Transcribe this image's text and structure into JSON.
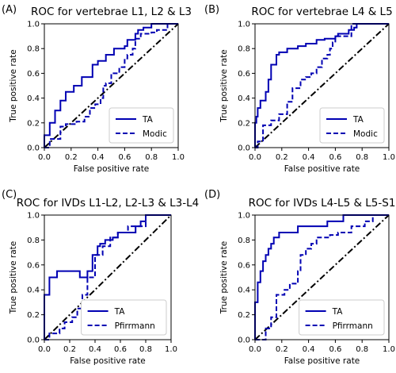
{
  "chart_data": [
    {
      "type": "line",
      "panel_label": "(A)",
      "title": "ROC for vertebrae L1, L2 & L3",
      "xlabel": "False positive rate",
      "ylabel": "True positive rate",
      "xlim": [
        0,
        1
      ],
      "ylim": [
        0,
        1
      ],
      "xticks": [
        "0.0",
        "0.2",
        "0.4",
        "0.6",
        "0.8",
        "1.0"
      ],
      "yticks": [
        "0.0",
        "0.2",
        "0.4",
        "0.6",
        "0.8",
        "1.0"
      ],
      "legend_position": "lower-right",
      "grid": false,
      "series": [
        {
          "name": "TA",
          "style": "solid",
          "color": "#0000b3",
          "x": [
            0,
            0,
            0.04,
            0.04,
            0.08,
            0.08,
            0.12,
            0.12,
            0.16,
            0.16,
            0.22,
            0.22,
            0.28,
            0.28,
            0.36,
            0.36,
            0.4,
            0.4,
            0.46,
            0.46,
            0.52,
            0.52,
            0.6,
            0.6,
            0.62,
            0.62,
            0.68,
            0.68,
            0.7,
            0.7,
            0.74,
            0.74,
            0.8,
            0.8,
            0.88,
            0.88,
            1.0
          ],
          "y": [
            0,
            0.1,
            0.1,
            0.2,
            0.2,
            0.3,
            0.3,
            0.38,
            0.38,
            0.45,
            0.45,
            0.5,
            0.5,
            0.57,
            0.57,
            0.67,
            0.67,
            0.7,
            0.7,
            0.75,
            0.75,
            0.8,
            0.8,
            0.82,
            0.82,
            0.87,
            0.87,
            0.92,
            0.92,
            0.95,
            0.95,
            0.97,
            0.97,
            1.0,
            1.0,
            1.0,
            1.0
          ]
        },
        {
          "name": "Modic",
          "style": "dashed",
          "color": "#0000b3",
          "x": [
            0,
            0.04,
            0.04,
            0.12,
            0.12,
            0.16,
            0.16,
            0.24,
            0.24,
            0.3,
            0.3,
            0.34,
            0.34,
            0.38,
            0.38,
            0.42,
            0.42,
            0.44,
            0.44,
            0.46,
            0.46,
            0.5,
            0.5,
            0.56,
            0.56,
            0.6,
            0.6,
            0.62,
            0.62,
            0.66,
            0.66,
            0.68,
            0.68,
            0.72,
            0.72,
            0.8,
            0.8,
            0.84,
            0.84,
            0.92,
            0.92,
            1.0
          ],
          "y": [
            0,
            0,
            0.07,
            0.07,
            0.17,
            0.17,
            0.19,
            0.19,
            0.21,
            0.21,
            0.25,
            0.25,
            0.32,
            0.32,
            0.35,
            0.35,
            0.4,
            0.4,
            0.5,
            0.5,
            0.52,
            0.52,
            0.6,
            0.6,
            0.65,
            0.65,
            0.72,
            0.72,
            0.75,
            0.75,
            0.8,
            0.8,
            0.88,
            0.88,
            0.92,
            0.92,
            0.93,
            0.93,
            0.95,
            0.95,
            1.0,
            1.0
          ]
        }
      ]
    },
    {
      "type": "line",
      "panel_label": "(B)",
      "title": "ROC for vertebrae L4 & L5",
      "xlabel": "False positive rate",
      "ylabel": "True positive rate",
      "xlim": [
        0,
        1
      ],
      "ylim": [
        0,
        1
      ],
      "xticks": [
        "0.0",
        "0.2",
        "0.4",
        "0.6",
        "0.8",
        "1.0"
      ],
      "yticks": [
        "0.0",
        "0.2",
        "0.4",
        "0.6",
        "0.8",
        "1.0"
      ],
      "legend_position": "lower-right",
      "grid": false,
      "series": [
        {
          "name": "TA",
          "style": "solid",
          "color": "#0000b3",
          "x": [
            0,
            0,
            0.01,
            0.01,
            0.02,
            0.02,
            0.04,
            0.04,
            0.08,
            0.08,
            0.1,
            0.1,
            0.12,
            0.12,
            0.16,
            0.16,
            0.18,
            0.18,
            0.24,
            0.24,
            0.32,
            0.32,
            0.38,
            0.38,
            0.46,
            0.46,
            0.52,
            0.52,
            0.6,
            0.6,
            0.62,
            0.62,
            0.7,
            0.7,
            0.74,
            0.74,
            0.76,
            0.76,
            1.0
          ],
          "y": [
            0,
            0.2,
            0.2,
            0.25,
            0.25,
            0.32,
            0.32,
            0.38,
            0.38,
            0.45,
            0.45,
            0.55,
            0.55,
            0.67,
            0.67,
            0.75,
            0.75,
            0.77,
            0.77,
            0.8,
            0.8,
            0.82,
            0.82,
            0.84,
            0.84,
            0.87,
            0.87,
            0.88,
            0.88,
            0.9,
            0.9,
            0.92,
            0.92,
            0.95,
            0.95,
            0.97,
            0.97,
            1.0,
            1.0
          ]
        },
        {
          "name": "Modic",
          "style": "dashed",
          "color": "#0000b3",
          "x": [
            0,
            0.02,
            0.02,
            0.06,
            0.06,
            0.12,
            0.12,
            0.18,
            0.18,
            0.24,
            0.24,
            0.28,
            0.28,
            0.34,
            0.34,
            0.38,
            0.38,
            0.42,
            0.42,
            0.46,
            0.46,
            0.5,
            0.5,
            0.54,
            0.54,
            0.56,
            0.56,
            0.58,
            0.58,
            0.6,
            0.6,
            0.72,
            0.72,
            0.8,
            0.8,
            1.0
          ],
          "y": [
            0,
            0,
            0.05,
            0.05,
            0.18,
            0.18,
            0.22,
            0.22,
            0.27,
            0.27,
            0.37,
            0.37,
            0.48,
            0.48,
            0.55,
            0.55,
            0.57,
            0.57,
            0.6,
            0.6,
            0.65,
            0.65,
            0.72,
            0.72,
            0.75,
            0.75,
            0.8,
            0.8,
            0.85,
            0.85,
            0.9,
            0.9,
            1.0,
            1.0,
            1.0,
            1.0
          ]
        }
      ]
    },
    {
      "type": "line",
      "panel_label": "(C)",
      "title": "ROC for IVDs L1-L2, L2-L3 & L3-L4",
      "xlabel": "False positive rate",
      "ylabel": "True positive rate",
      "xlim": [
        0,
        1
      ],
      "ylim": [
        0,
        1
      ],
      "xticks": [
        "0.0",
        "0.2",
        "0.4",
        "0.6",
        "0.8",
        "1.0"
      ],
      "yticks": [
        "0.0",
        "0.2",
        "0.4",
        "0.6",
        "0.8",
        "1.0"
      ],
      "legend_position": "lower-right",
      "grid": false,
      "series": [
        {
          "name": "TA",
          "style": "solid",
          "color": "#0000b3",
          "x": [
            0,
            0,
            0.04,
            0.04,
            0.1,
            0.1,
            0.18,
            0.18,
            0.28,
            0.28,
            0.34,
            0.34,
            0.38,
            0.38,
            0.42,
            0.42,
            0.44,
            0.44,
            0.48,
            0.48,
            0.54,
            0.54,
            0.58,
            0.58,
            0.66,
            0.66,
            0.72,
            0.72,
            0.76,
            0.76,
            0.8,
            0.8,
            1.0
          ],
          "y": [
            0,
            0.36,
            0.36,
            0.5,
            0.5,
            0.55,
            0.55,
            0.55,
            0.55,
            0.5,
            0.5,
            0.55,
            0.55,
            0.68,
            0.68,
            0.75,
            0.75,
            0.77,
            0.77,
            0.8,
            0.8,
            0.82,
            0.82,
            0.86,
            0.86,
            0.86,
            0.86,
            0.91,
            0.91,
            0.95,
            0.95,
            1.0,
            1.0
          ]
        },
        {
          "name": "Pfirrmann",
          "style": "dashed",
          "color": "#0000b3",
          "x": [
            0,
            0.04,
            0.04,
            0.12,
            0.12,
            0.16,
            0.16,
            0.22,
            0.22,
            0.26,
            0.26,
            0.3,
            0.3,
            0.34,
            0.34,
            0.4,
            0.4,
            0.46,
            0.46,
            0.52,
            0.52,
            0.58,
            0.58,
            0.66,
            0.66,
            0.8,
            0.8,
            1.0
          ],
          "y": [
            0,
            0,
            0.05,
            0.05,
            0.09,
            0.09,
            0.14,
            0.14,
            0.18,
            0.18,
            0.25,
            0.25,
            0.36,
            0.36,
            0.5,
            0.5,
            0.68,
            0.68,
            0.75,
            0.75,
            0.82,
            0.82,
            0.86,
            0.86,
            0.91,
            0.91,
            1.0,
            1.0
          ]
        }
      ]
    },
    {
      "type": "line",
      "panel_label": "(D)",
      "title": "ROC for IVDs L4-L5 & L5-S1",
      "xlabel": "False positive rate",
      "ylabel": "True positive rate",
      "xlim": [
        0,
        1
      ],
      "ylim": [
        0,
        1
      ],
      "xticks": [
        "0.0",
        "0.2",
        "0.4",
        "0.6",
        "0.8",
        "1.0"
      ],
      "yticks": [
        "0.0",
        "0.2",
        "0.4",
        "0.6",
        "0.8",
        "1.0"
      ],
      "legend_position": "lower-right",
      "grid": false,
      "series": [
        {
          "name": "TA",
          "style": "solid",
          "color": "#0000b3",
          "x": [
            0,
            0,
            0.02,
            0.02,
            0.04,
            0.04,
            0.06,
            0.06,
            0.08,
            0.08,
            0.1,
            0.1,
            0.12,
            0.12,
            0.14,
            0.14,
            0.18,
            0.18,
            0.24,
            0.24,
            0.32,
            0.32,
            0.42,
            0.42,
            0.54,
            0.54,
            0.62,
            0.62,
            0.66,
            0.66,
            1.0
          ],
          "y": [
            0,
            0.3,
            0.3,
            0.46,
            0.46,
            0.55,
            0.55,
            0.63,
            0.63,
            0.68,
            0.68,
            0.73,
            0.73,
            0.77,
            0.77,
            0.82,
            0.82,
            0.86,
            0.86,
            0.86,
            0.86,
            0.91,
            0.91,
            0.91,
            0.91,
            0.95,
            0.95,
            0.95,
            0.95,
            1.0,
            1.0
          ]
        },
        {
          "name": "Pfirrmann",
          "style": "dashed",
          "color": "#0000b3",
          "x": [
            0,
            0.08,
            0.08,
            0.12,
            0.12,
            0.16,
            0.16,
            0.22,
            0.22,
            0.26,
            0.26,
            0.32,
            0.32,
            0.34,
            0.34,
            0.38,
            0.38,
            0.42,
            0.42,
            0.46,
            0.46,
            0.5,
            0.5,
            0.56,
            0.56,
            0.62,
            0.62,
            0.72,
            0.72,
            0.82,
            0.82,
            0.88,
            0.88,
            1.0
          ],
          "y": [
            0,
            0,
            0.09,
            0.09,
            0.18,
            0.18,
            0.36,
            0.36,
            0.4,
            0.4,
            0.45,
            0.45,
            0.55,
            0.55,
            0.68,
            0.68,
            0.73,
            0.73,
            0.77,
            0.77,
            0.82,
            0.82,
            0.82,
            0.82,
            0.84,
            0.84,
            0.86,
            0.86,
            0.91,
            0.91,
            0.95,
            0.95,
            1.0,
            1.0
          ]
        }
      ]
    }
  ]
}
